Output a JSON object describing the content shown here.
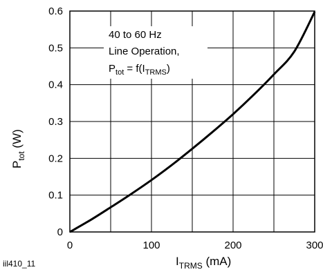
{
  "figure_id": "iil410_11",
  "chart_data": {
    "type": "line",
    "xlabel": {
      "main": "I",
      "sub": "TRMS",
      "unit": " (mA)"
    },
    "ylabel": {
      "main": "P",
      "sub": "tot",
      "unit": " (W)"
    },
    "xlim": [
      0,
      300
    ],
    "ylim": [
      0,
      0.6
    ],
    "x_ticks": [
      0,
      100,
      200,
      300
    ],
    "x_tick_labels": [
      "0",
      "100",
      "200",
      "300"
    ],
    "y_ticks": [
      0,
      0.1,
      0.2,
      0.3,
      0.4,
      0.5,
      0.6
    ],
    "y_tick_labels": [
      "0",
      "0.1",
      "0.2",
      "0.3",
      "0.4",
      "0.5",
      "0.6"
    ],
    "x_grid": [
      0,
      50,
      100,
      150,
      200,
      250,
      300
    ],
    "y_grid": [
      0,
      0.1,
      0.2,
      0.3,
      0.4,
      0.5,
      0.6
    ],
    "grid": true,
    "annotation": {
      "line1": "40 to 60 Hz",
      "line2": "Line Operation,",
      "line3_main": "P",
      "line3_sub": "tot",
      "line3_mid": " = f(I",
      "line3_sub2": "TRMS",
      "line3_end": ")"
    },
    "series": [
      {
        "x": [
          0,
          25,
          50,
          75,
          100,
          125,
          150,
          175,
          200,
          225,
          250,
          275,
          300
        ],
        "y": [
          0,
          0.032,
          0.067,
          0.103,
          0.141,
          0.182,
          0.226,
          0.272,
          0.32,
          0.372,
          0.428,
          0.49,
          0.598
        ]
      }
    ]
  }
}
